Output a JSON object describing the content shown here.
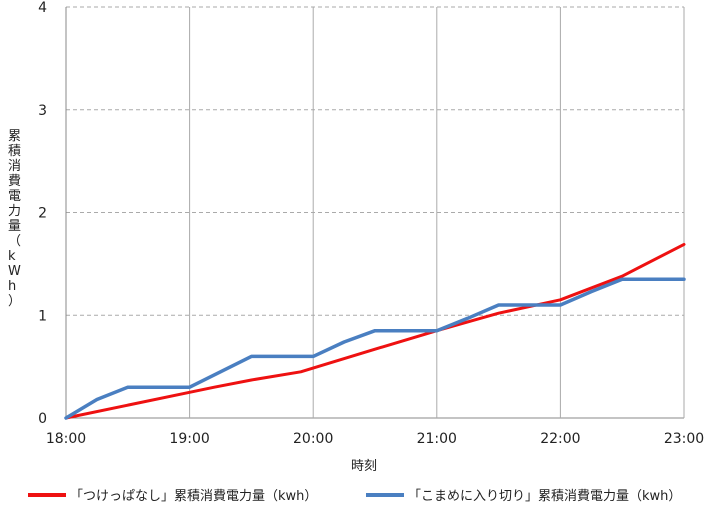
{
  "chart_data": {
    "type": "line",
    "xlabel": "時刻",
    "ylabel": "累積消費電力量（kWh）",
    "x_ticks": [
      "18:00",
      "19:00",
      "20:00",
      "21:00",
      "22:00",
      "23:00"
    ],
    "xlim": [
      18,
      23
    ],
    "ylim": [
      0,
      4
    ],
    "y_ticks": [
      0,
      1,
      2,
      3,
      4
    ],
    "grid": {
      "vertical": "solid",
      "horizontal": "dashed"
    },
    "legend_position": "bottom",
    "series": [
      {
        "name": "「つけっぱなし」累積消費電力量（kwh）",
        "color": "#ee1111",
        "x": [
          18.0,
          19.0,
          19.2,
          19.5,
          19.9,
          20.5,
          21.0,
          21.5,
          22.0,
          22.5,
          23.0
        ],
        "y": [
          0.0,
          0.25,
          0.3,
          0.37,
          0.45,
          0.67,
          0.85,
          1.02,
          1.15,
          1.38,
          1.69
        ]
      },
      {
        "name": "「こまめに入り切り」累積消費電力量（kwh）",
        "color": "#4a7fc1",
        "x": [
          18.0,
          18.25,
          18.5,
          19.0,
          19.25,
          19.5,
          20.0,
          20.25,
          20.5,
          21.0,
          21.25,
          21.5,
          22.0,
          22.25,
          22.5,
          23.0
        ],
        "y": [
          0.0,
          0.18,
          0.3,
          0.3,
          0.45,
          0.6,
          0.6,
          0.74,
          0.85,
          0.85,
          0.97,
          1.1,
          1.1,
          1.23,
          1.35,
          1.35
        ]
      }
    ]
  }
}
